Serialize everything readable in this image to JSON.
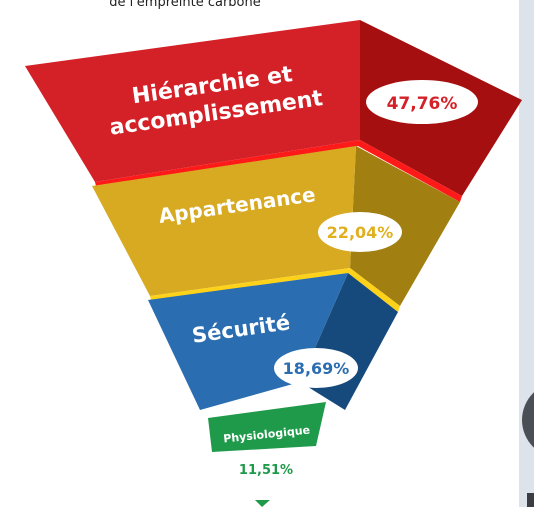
{
  "caption": "de l'empreinte carbone",
  "levels": [
    {
      "label_lines": [
        "Hiérarchie et",
        "accomplissement"
      ],
      "value": "47,76%"
    },
    {
      "label_lines": [
        "Appartenance"
      ],
      "value": "22,04%"
    },
    {
      "label_lines": [
        "Sécurité"
      ],
      "value": "18,69%"
    },
    {
      "label_lines": [
        "Physiologique"
      ],
      "value": "11,51%"
    }
  ]
}
